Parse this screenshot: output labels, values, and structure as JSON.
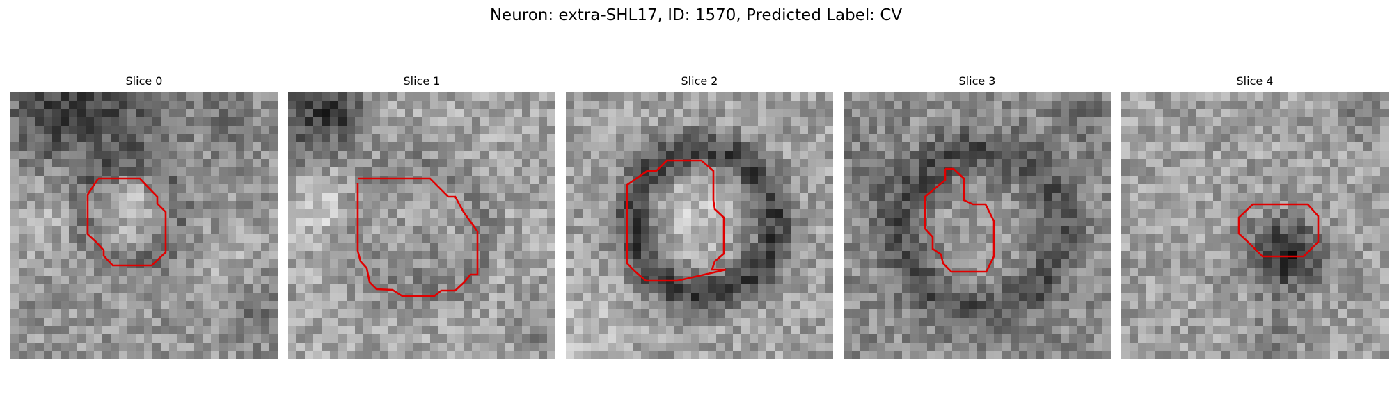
{
  "figure": {
    "title": "Neuron: extra-SHL17, ID: 1570, Predicted Label: CV"
  },
  "colors": {
    "background": "#ffffff",
    "contour": "#e00000"
  },
  "panels": [
    {
      "title": "Slice 0"
    },
    {
      "title": "Slice 1"
    },
    {
      "title": "Slice 2"
    },
    {
      "title": "Slice 3"
    },
    {
      "title": "Slice 4"
    }
  ]
}
